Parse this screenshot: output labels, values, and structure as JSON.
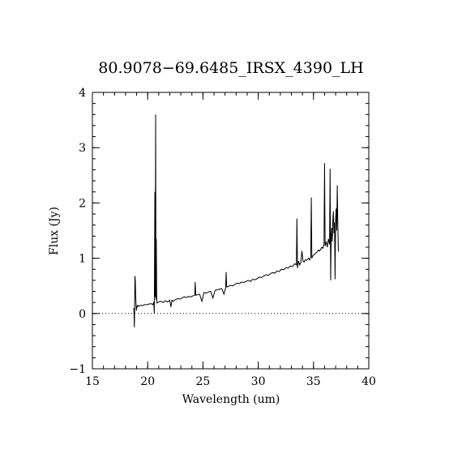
{
  "chart_data": {
    "type": "line",
    "title": "80.9078−69.6485_IRSX_4390_LH",
    "xlabel": "Wavelength (um)",
    "ylabel": "Flux (Jy)",
    "xlim": [
      15,
      40
    ],
    "ylim": [
      -1,
      4
    ],
    "xticks": [
      15,
      20,
      25,
      30,
      35,
      40
    ],
    "xtick_labels": [
      "15",
      "20",
      "25",
      "30",
      "35",
      "40"
    ],
    "yticks": [
      -1,
      0,
      1,
      2,
      3,
      4
    ],
    "ytick_labels": [
      "−1",
      "0",
      "1",
      "2",
      "3",
      "4"
    ],
    "x_minor_step": 1,
    "y_minor_step": 0.2,
    "zero_line": true,
    "grid": false,
    "legend": "none",
    "line_color": "#000000",
    "series": [
      {
        "x": [
          18.75,
          18.8,
          18.85,
          18.88,
          18.92,
          18.95,
          18.98,
          19.02,
          19.05,
          19.1,
          19.2,
          19.35,
          19.5,
          19.7,
          19.9,
          20.1,
          20.3,
          20.45,
          20.55,
          20.6,
          20.65,
          20.68,
          20.72,
          20.75,
          20.78,
          20.82,
          20.86,
          20.9,
          21.0,
          21.2,
          21.4,
          21.6,
          21.8,
          22.0,
          22.1,
          22.2,
          22.3,
          22.5,
          22.7,
          22.9,
          23.1,
          23.3,
          23.5,
          23.7,
          23.9,
          24.1,
          24.25,
          24.3,
          24.35,
          24.5,
          24.7,
          24.9,
          25.1,
          25.3,
          25.5,
          25.7,
          25.9,
          26.1,
          26.3,
          26.5,
          26.7,
          26.9,
          27.05,
          27.1,
          27.15,
          27.3,
          27.5,
          27.7,
          27.9,
          28.1,
          28.3,
          28.5,
          28.7,
          28.9,
          29.1,
          29.3,
          29.5,
          29.7,
          29.9,
          30.1,
          30.3,
          30.5,
          30.7,
          30.9,
          31.1,
          31.3,
          31.5,
          31.7,
          31.9,
          32.1,
          32.3,
          32.5,
          32.7,
          32.9,
          33.1,
          33.3,
          33.45,
          33.5,
          33.55,
          33.65,
          33.75,
          33.85,
          33.95,
          34.05,
          34.15,
          34.25,
          34.35,
          34.45,
          34.55,
          34.65,
          34.75,
          34.8,
          34.85,
          34.95,
          35.05,
          35.15,
          35.25,
          35.35,
          35.45,
          35.55,
          35.65,
          35.75,
          35.85,
          35.95,
          36.0,
          36.05,
          36.15,
          36.25,
          36.35,
          36.45,
          36.5,
          36.55,
          36.6,
          36.65,
          36.7,
          36.75,
          36.8,
          36.85,
          36.9,
          36.95,
          37.0,
          37.05,
          37.1,
          37.15,
          37.2,
          37.25
        ],
        "y": [
          0.1,
          -0.25,
          0.68,
          0.6,
          0.3,
          0.15,
          0.05,
          0.14,
          0.12,
          0.15,
          0.13,
          0.15,
          0.14,
          0.16,
          0.16,
          0.17,
          0.18,
          0.16,
          0.2,
          0.0,
          2.2,
          0.3,
          3.6,
          0.25,
          1.35,
          0.2,
          0.19,
          0.2,
          0.21,
          0.22,
          0.2,
          0.23,
          0.21,
          0.24,
          0.12,
          0.24,
          0.22,
          0.25,
          0.27,
          0.26,
          0.28,
          0.3,
          0.29,
          0.31,
          0.3,
          0.32,
          0.33,
          0.57,
          0.33,
          0.34,
          0.35,
          0.22,
          0.38,
          0.37,
          0.39,
          0.4,
          0.28,
          0.42,
          0.43,
          0.44,
          0.45,
          0.35,
          0.46,
          0.75,
          0.48,
          0.49,
          0.51,
          0.5,
          0.53,
          0.55,
          0.54,
          0.57,
          0.56,
          0.58,
          0.6,
          0.58,
          0.62,
          0.61,
          0.63,
          0.66,
          0.65,
          0.68,
          0.7,
          0.69,
          0.72,
          0.74,
          0.73,
          0.77,
          0.76,
          0.8,
          0.79,
          0.83,
          0.82,
          0.86,
          0.85,
          0.9,
          0.88,
          1.72,
          0.82,
          0.95,
          0.88,
          0.92,
          1.13,
          0.95,
          0.93,
          0.97,
          0.96,
          0.98,
          1.0,
          0.97,
          1.02,
          2.1,
          1.0,
          1.05,
          1.06,
          1.08,
          1.1,
          1.12,
          1.15,
          1.13,
          1.16,
          1.2,
          1.18,
          1.25,
          2.72,
          1.22,
          1.3,
          1.2,
          1.35,
          1.25,
          2.62,
          0.6,
          1.4,
          1.55,
          1.3,
          1.7,
          1.85,
          1.45,
          1.65,
          0.62,
          1.7,
          1.9,
          1.5,
          2.32,
          1.6,
          1.12
        ]
      }
    ]
  }
}
